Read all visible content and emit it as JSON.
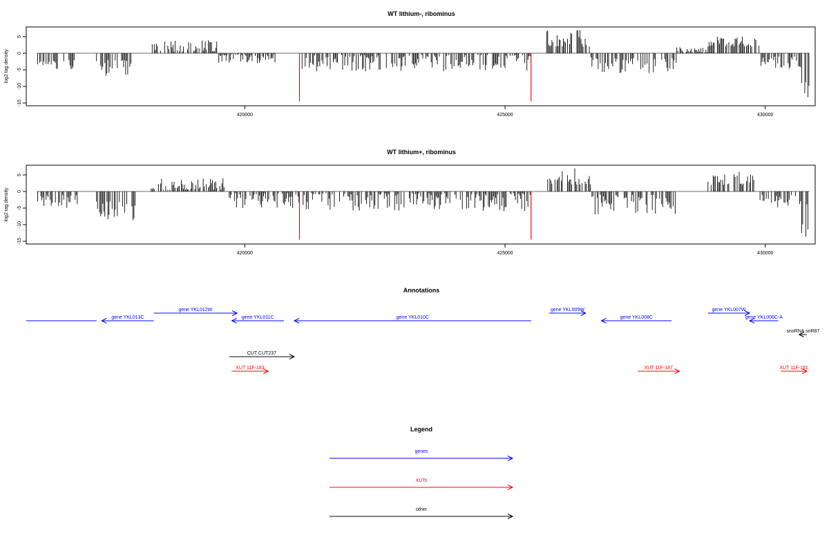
{
  "chart_data": [
    {
      "type": "bar",
      "title": "WT lithium-, ribominus",
      "ylabel": "log2 tag density",
      "ylim": [
        -15,
        8
      ],
      "yticks": [
        5,
        0,
        -5,
        -10,
        -15
      ],
      "xlim": [
        415800,
        430960
      ],
      "xticks": [
        420000,
        425000,
        430000
      ],
      "segments": [
        {
          "from": 416000,
          "to": 416750,
          "sign": "neg",
          "min": 2,
          "max": 6
        },
        {
          "from": 417150,
          "to": 417850,
          "sign": "neg",
          "min": 2,
          "max": 7
        },
        {
          "from": 418200,
          "to": 419500,
          "sign": "pos",
          "min": 0.5,
          "max": 4
        },
        {
          "from": 419500,
          "to": 420600,
          "sign": "neg",
          "min": 0.3,
          "max": 3
        },
        {
          "from": 421100,
          "to": 425500,
          "sign": "neg",
          "min": 0.5,
          "max": 5.5
        },
        {
          "from": 425800,
          "to": 426650,
          "sign": "pos",
          "min": 2,
          "max": 7.5
        },
        {
          "from": 426650,
          "to": 428300,
          "sign": "neg",
          "min": 1,
          "max": 6
        },
        {
          "from": 428300,
          "to": 428900,
          "sign": "pos",
          "min": 0.3,
          "max": 2
        },
        {
          "from": 428900,
          "to": 429900,
          "sign": "pos",
          "min": 2,
          "max": 5
        },
        {
          "from": 429900,
          "to": 430700,
          "sign": "neg",
          "min": 1,
          "max": 5
        },
        {
          "from": 430700,
          "to": 430850,
          "sign": "neg",
          "min": 3,
          "max": 13.5
        }
      ],
      "highlights": [
        {
          "x": 421050,
          "value": -14.5,
          "color": "#ff0000"
        },
        {
          "x": 425500,
          "value": -14.5,
          "color": "#ff0000"
        }
      ]
    },
    {
      "type": "bar",
      "title": "WT lithium+, ribominus",
      "ylabel": "log2 tag density",
      "ylim": [
        -15,
        8
      ],
      "yticks": [
        5,
        0,
        -5,
        -10,
        -15
      ],
      "xlim": [
        415800,
        430960
      ],
      "xticks": [
        420000,
        425000,
        430000
      ],
      "segments": [
        {
          "from": 416000,
          "to": 416800,
          "sign": "neg",
          "min": 1,
          "max": 5
        },
        {
          "from": 417150,
          "to": 417900,
          "sign": "neg",
          "min": 3,
          "max": 9
        },
        {
          "from": 418200,
          "to": 419700,
          "sign": "pos",
          "min": 0.5,
          "max": 4
        },
        {
          "from": 419700,
          "to": 421050,
          "sign": "neg",
          "min": 0.5,
          "max": 5
        },
        {
          "from": 421100,
          "to": 425500,
          "sign": "neg",
          "min": 0.5,
          "max": 6
        },
        {
          "from": 425800,
          "to": 426650,
          "sign": "pos",
          "min": 2,
          "max": 7
        },
        {
          "from": 426650,
          "to": 428300,
          "sign": "neg",
          "min": 1,
          "max": 7
        },
        {
          "from": 428900,
          "to": 429900,
          "sign": "pos",
          "min": 2,
          "max": 6
        },
        {
          "from": 429900,
          "to": 430700,
          "sign": "neg",
          "min": 1,
          "max": 5
        },
        {
          "from": 430700,
          "to": 430850,
          "sign": "neg",
          "min": 3,
          "max": 14.5
        }
      ],
      "highlights": [
        {
          "x": 421050,
          "value": -14.5,
          "color": "#ff0000"
        },
        {
          "x": 425500,
          "value": -14.5,
          "color": "#ff0000"
        }
      ]
    }
  ],
  "annotations": {
    "title": "Annotations",
    "xlim": [
      415800,
      430960
    ],
    "features": [
      {
        "label": "",
        "start": 415800,
        "end": 417150,
        "strand": "-",
        "kind": "gene",
        "row": 1
      },
      {
        "label": "gene YKL013C",
        "start": 417250,
        "end": 418250,
        "strand": "-",
        "kind": "gene",
        "row": 1
      },
      {
        "label": "gene YKL012W",
        "start": 418250,
        "end": 419850,
        "strand": "+",
        "kind": "gene",
        "row": 0
      },
      {
        "label": "gene YKL011C",
        "start": 419750,
        "end": 420750,
        "strand": "-",
        "kind": "gene",
        "row": 1
      },
      {
        "label": "gene YKL010C",
        "start": 420950,
        "end": 425500,
        "strand": "-",
        "kind": "gene",
        "row": 1
      },
      {
        "label": "gene YKL009W",
        "start": 425850,
        "end": 426550,
        "strand": "+",
        "kind": "gene",
        "row": 0
      },
      {
        "label": "gene YKL008C",
        "start": 426850,
        "end": 428200,
        "strand": "-",
        "kind": "gene",
        "row": 1
      },
      {
        "label": "gene YKL007W",
        "start": 428900,
        "end": 429700,
        "strand": "+",
        "kind": "gene",
        "row": 0
      },
      {
        "label": "gene YKL006C-A",
        "start": 429700,
        "end": 430250,
        "strand": "-",
        "kind": "gene",
        "row": 1
      },
      {
        "label": "snoRNA snR87",
        "start": 430650,
        "end": 430800,
        "strand": "-",
        "kind": "other",
        "row": 2
      },
      {
        "label": "CUT CUT237",
        "start": 419700,
        "end": 420950,
        "strand": "+",
        "kind": "other",
        "row": 3
      },
      {
        "label": "XUT 11F-183",
        "start": 419750,
        "end": 420450,
        "strand": "+",
        "kind": "xut",
        "row": 4
      },
      {
        "label": "XUT 11F-187",
        "start": 427550,
        "end": 428350,
        "strand": "+",
        "kind": "xut",
        "row": 4
      },
      {
        "label": "XUT 11F-191",
        "start": 430300,
        "end": 431000,
        "strand": "+",
        "kind": "xut",
        "row": 4
      }
    ]
  },
  "legend": {
    "title": "Legend",
    "items": [
      {
        "label": "genes",
        "color": "#0000ff"
      },
      {
        "label": "XUTs",
        "color": "#ff0000"
      },
      {
        "label": "other",
        "color": "#000000"
      }
    ]
  },
  "colors": {
    "gene": "#0000ff",
    "xut": "#ff0000",
    "other": "#000000",
    "bars": "#000000",
    "baseline": "#888888"
  }
}
